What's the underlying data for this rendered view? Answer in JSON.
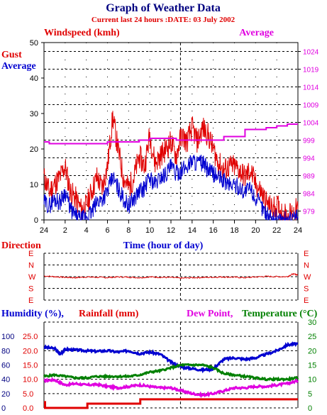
{
  "colors": {
    "red": "#e00000",
    "blue": "#0000d0",
    "magenta": "#e000e0",
    "green": "#008000",
    "darkblue": "#000080",
    "grid": "#000000"
  },
  "header": {
    "title": "Graph of Weather Data",
    "subtitle": "Current last 24 hours :DATE: 03 July 2002"
  },
  "chart_data": [
    {
      "type": "line",
      "panel": "wind",
      "labels": {
        "windspeed": "Windspeed (kmh)",
        "average_right": "Average",
        "gust": "Gust",
        "average_left": "Average"
      },
      "xlabel": "Time (hour of day)",
      "x_ticks": [
        "24",
        "2",
        "4",
        "6",
        "8",
        "10",
        "12",
        "14",
        "16",
        "18",
        "20",
        "22",
        "24"
      ],
      "ylim": [
        0,
        50
      ],
      "y_ticks": [
        0,
        10,
        20,
        30,
        40,
        50
      ],
      "y2_ticks": [
        979,
        984,
        989,
        994,
        999,
        1004,
        1009,
        1014,
        1019,
        1024
      ],
      "grid": true,
      "series": [
        {
          "name": "Gust",
          "color": "red",
          "x": [
            0,
            0.5,
            1,
            1.5,
            2,
            2.5,
            3,
            3.5,
            4,
            4.5,
            5,
            5.5,
            6,
            6.5,
            7,
            7.5,
            8,
            8.5,
            9,
            9.5,
            10,
            10.5,
            11,
            11.5,
            12,
            12.5,
            13,
            13.5,
            14,
            14.5,
            15,
            15.5,
            16,
            16.5,
            17,
            17.5,
            18,
            18.5,
            19,
            19.5,
            20,
            20.5,
            21,
            21.5,
            22,
            22.5,
            23,
            23.5,
            24
          ],
          "values": [
            12,
            8,
            10,
            12,
            15,
            8,
            6,
            3,
            4,
            8,
            12,
            9,
            15,
            29,
            20,
            12,
            9,
            12,
            18,
            15,
            24,
            16,
            18,
            20,
            22,
            18,
            24,
            22,
            26,
            22,
            26,
            24,
            20,
            16,
            14,
            15,
            15,
            14,
            12,
            14,
            10,
            8,
            5,
            3,
            4,
            2,
            1,
            2,
            3
          ]
        },
        {
          "name": "Average",
          "color": "blue",
          "x": [
            0,
            0.5,
            1,
            1.5,
            2,
            2.5,
            3,
            3.5,
            4,
            4.5,
            5,
            5.5,
            6,
            6.5,
            7,
            7.5,
            8,
            8.5,
            9,
            9.5,
            10,
            10.5,
            11,
            11.5,
            12,
            12.5,
            13,
            13.5,
            14,
            14.5,
            15,
            15.5,
            16,
            16.5,
            17,
            17.5,
            18,
            18.5,
            19,
            19.5,
            20,
            20.5,
            21,
            21.5,
            22,
            22.5,
            23,
            23.5,
            24
          ],
          "values": [
            5,
            4,
            6,
            5,
            8,
            3,
            1,
            0,
            1,
            2,
            5,
            6,
            8,
            12,
            9,
            6,
            4,
            6,
            8,
            9,
            12,
            10,
            12,
            13,
            15,
            13,
            14,
            15,
            17,
            16,
            16,
            14,
            13,
            12,
            11,
            10,
            10,
            9,
            8,
            9,
            6,
            4,
            2,
            0,
            1,
            0,
            0,
            0,
            1
          ]
        }
      ],
      "pressure_series": {
        "name": "Pressure",
        "color": "magenta",
        "x": [
          0,
          0.5,
          3,
          6,
          9,
          10,
          12,
          12.5,
          15,
          17,
          19,
          21,
          22,
          23,
          24
        ],
        "values": [
          998.5,
          998,
          998,
          998.5,
          999,
          999.5,
          999.5,
          999,
          999,
          1000,
          1002,
          1002.5,
          1003,
          1003.5,
          1003.5
        ]
      }
    },
    {
      "type": "line",
      "panel": "direction",
      "label": "Direction",
      "y_ticks": [
        "E",
        "N",
        "W",
        "S",
        "E"
      ],
      "series": [
        {
          "name": "Direction",
          "color": "red",
          "x": [
            0,
            1,
            2,
            3,
            4,
            5,
            6,
            7,
            8,
            9,
            10,
            11,
            12,
            13,
            14,
            15,
            16,
            17,
            18,
            19,
            20,
            21,
            22,
            23,
            23.5,
            24
          ],
          "values": [
            275,
            270,
            265,
            262,
            268,
            265,
            263,
            268,
            266,
            262,
            268,
            265,
            264,
            258,
            262,
            264,
            266,
            268,
            266,
            262,
            268,
            272,
            270,
            270,
            290,
            285
          ]
        }
      ]
    },
    {
      "type": "line",
      "panel": "humidity",
      "labels": {
        "humidity": "Humidity (%),",
        "rainfall": "Rainfall (mm)",
        "dewpoint": "Dew Point,",
        "temperature": "Temperature (°C)"
      },
      "humidity_ticks": [
        0,
        20,
        40,
        60,
        80,
        100
      ],
      "rain_ticks": [
        "0.0",
        "5.0",
        "10.0",
        "15.0",
        "20.0",
        "25.0"
      ],
      "temp_ticks": [
        0,
        5,
        10,
        15,
        20,
        25,
        30
      ],
      "series": [
        {
          "name": "Humidity",
          "color": "blue",
          "x": [
            0,
            1,
            1.5,
            2,
            3,
            4,
            5,
            6,
            7,
            8,
            9,
            10,
            11,
            12,
            13,
            14,
            15,
            16,
            17,
            18,
            19,
            20,
            21,
            22,
            23,
            24
          ],
          "values": [
            85,
            83,
            75,
            82,
            81,
            80,
            79,
            80,
            78,
            80,
            76,
            78,
            75,
            64,
            57,
            55,
            53,
            55,
            68,
            70,
            68,
            70,
            75,
            80,
            88,
            90
          ]
        },
        {
          "name": "Rainfall",
          "color": "red",
          "x": [
            0,
            0.1,
            4,
            4.1,
            9,
            9.1,
            24
          ],
          "values": [
            2.0,
            0.0,
            0.0,
            1.5,
            1.5,
            3.0,
            3.0
          ]
        },
        {
          "name": "Dew Point",
          "color": "magenta",
          "x": [
            0,
            1,
            2,
            3,
            4,
            5,
            6,
            7,
            8,
            9,
            10,
            11,
            12,
            13,
            14,
            15,
            16,
            17,
            18,
            19,
            20,
            21,
            22,
            23,
            24
          ],
          "values": [
            9.5,
            9.8,
            8,
            8.5,
            8,
            8.2,
            7.5,
            7,
            7.5,
            8,
            7.5,
            7,
            7,
            6,
            5,
            4.5,
            5,
            6,
            7,
            7,
            7.5,
            7.5,
            8,
            8.5,
            9.5
          ]
        },
        {
          "name": "Temperature",
          "color": "green",
          "x": [
            0,
            1,
            2,
            3,
            4,
            5,
            6,
            7,
            8,
            9,
            10,
            11,
            12,
            13,
            14,
            15,
            16,
            17,
            18,
            19,
            20,
            21,
            22,
            23,
            24
          ],
          "values": [
            11,
            11.5,
            11,
            10.5,
            10.5,
            11,
            11,
            11,
            11,
            11.5,
            12.5,
            13,
            14,
            15,
            15,
            15,
            14,
            12,
            11.5,
            11,
            10.5,
            10,
            10,
            10,
            10.5
          ]
        }
      ]
    }
  ]
}
